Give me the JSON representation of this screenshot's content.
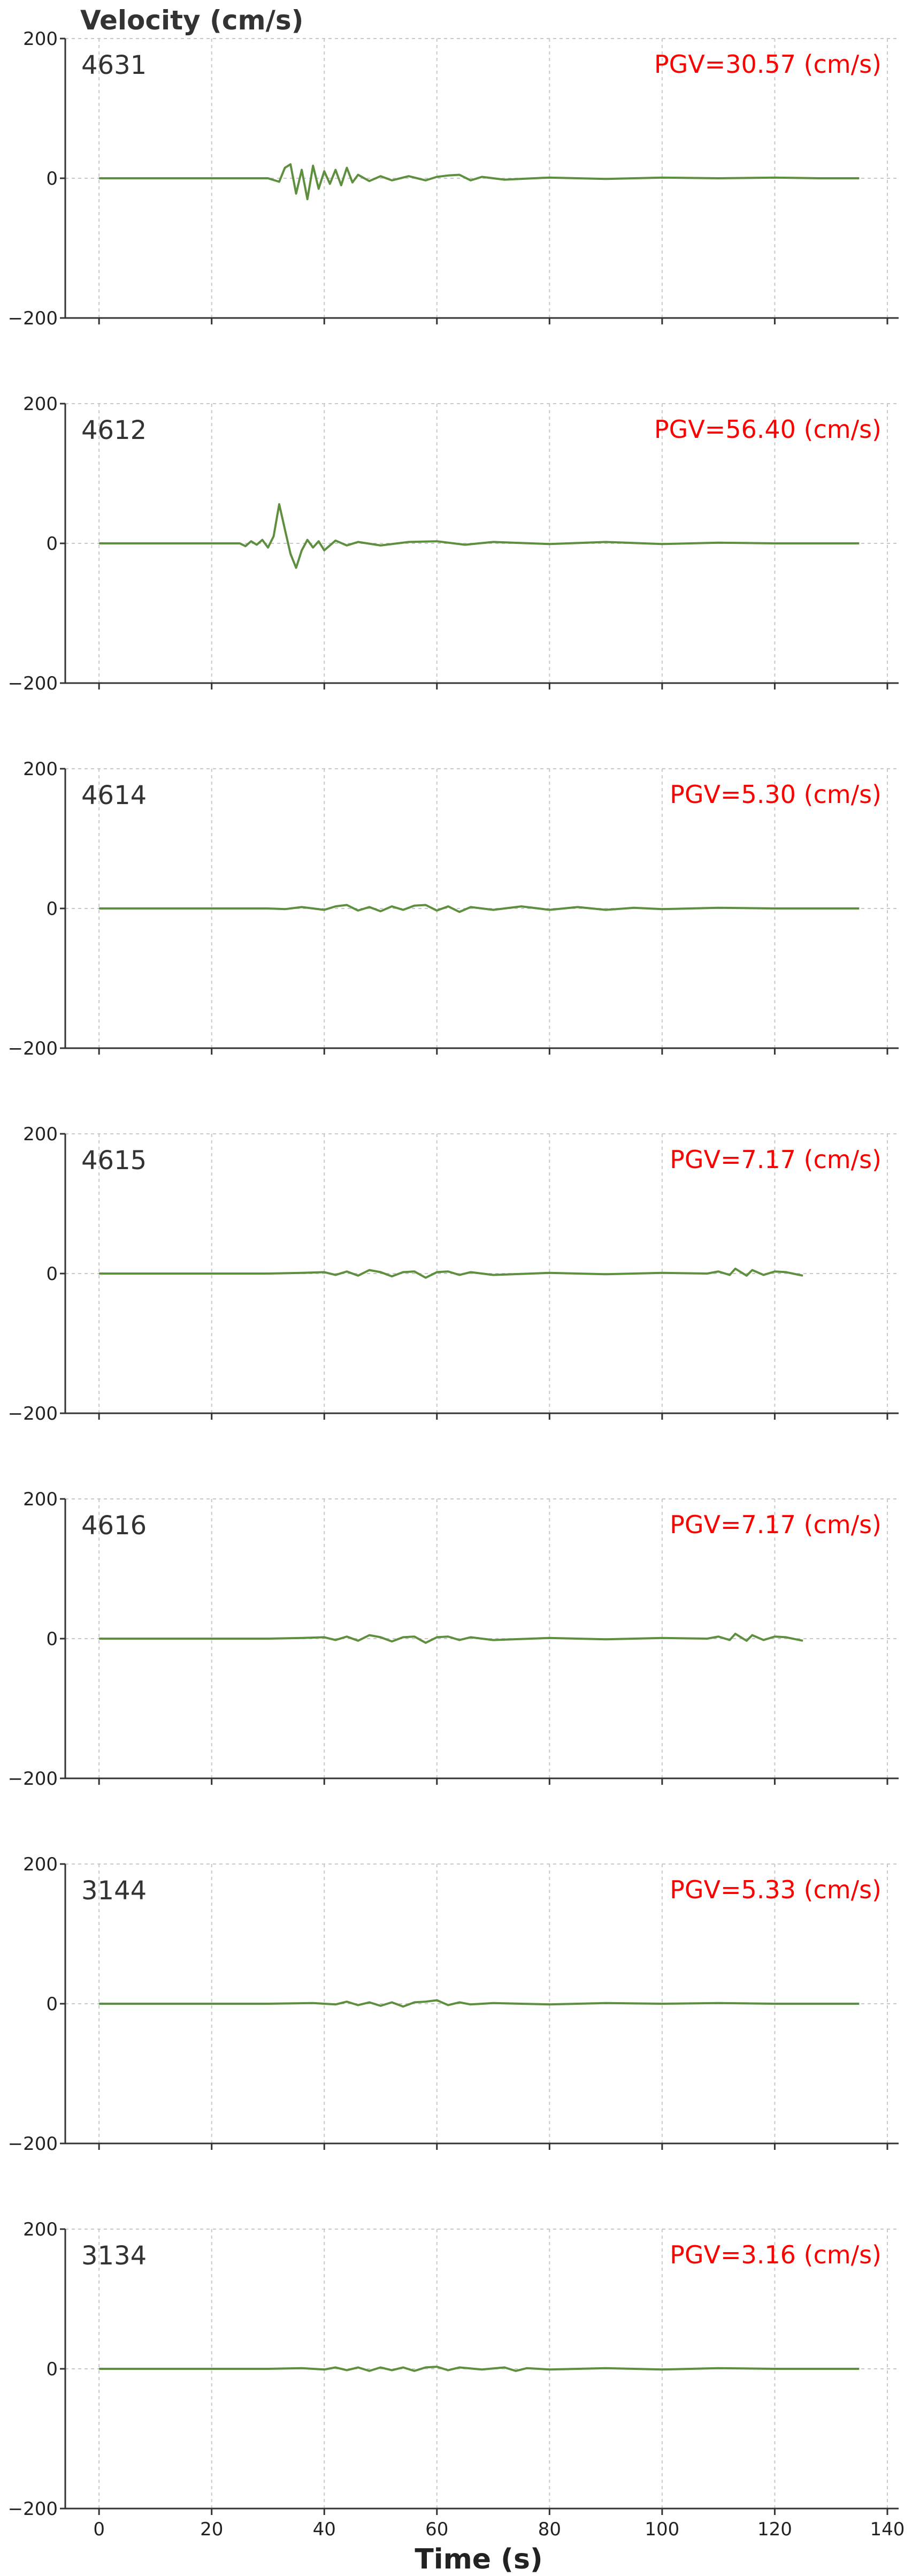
{
  "chart_data": {
    "type": "line",
    "ylabel": "Velocity (cm/s)",
    "xlabel": "Time (s)",
    "xlim": [
      -6,
      142
    ],
    "ylim": [
      -200,
      200
    ],
    "xticks": [
      0,
      20,
      40,
      60,
      80,
      100,
      120,
      140
    ],
    "xtick_labels": [
      "0",
      "20",
      "40",
      "60",
      "80",
      "100",
      "120",
      "140"
    ],
    "yticks": [
      -200,
      0,
      200
    ],
    "ytick_labels": [
      "−200",
      "0",
      "200"
    ],
    "grid": true,
    "line_color": "#5e8f3e",
    "annotation_color": "#ff0000",
    "panels": [
      {
        "station": "4631",
        "pgv_text": "PGV=30.57 (cm/s)",
        "x": [
          0,
          10,
          20,
          30,
          32,
          33,
          34,
          35,
          36,
          37,
          38,
          39,
          40,
          41,
          42,
          43,
          44,
          45,
          46,
          48,
          50,
          52,
          55,
          58,
          60,
          62,
          64,
          66,
          68,
          72,
          80,
          90,
          100,
          110,
          120,
          128,
          135
        ],
        "y": [
          0,
          0,
          0,
          0,
          -5,
          15,
          20,
          -22,
          12,
          -30,
          18,
          -15,
          10,
          -8,
          12,
          -10,
          15,
          -6,
          5,
          -4,
          3,
          -3,
          3,
          -3,
          2,
          4,
          5,
          -3,
          2,
          -2,
          1,
          -1,
          1,
          0,
          1,
          0,
          0
        ]
      },
      {
        "station": "4612",
        "pgv_text": "PGV=56.40 (cm/s)",
        "x": [
          0,
          10,
          20,
          25,
          26,
          27,
          28,
          29,
          30,
          31,
          32,
          33,
          34,
          35,
          36,
          37,
          38,
          39,
          40,
          42,
          44,
          46,
          50,
          55,
          60,
          65,
          70,
          80,
          90,
          100,
          110,
          120,
          135
        ],
        "y": [
          0,
          0,
          0,
          0,
          -4,
          3,
          -2,
          5,
          -6,
          10,
          56,
          20,
          -15,
          -35,
          -10,
          5,
          -6,
          3,
          -10,
          4,
          -3,
          2,
          -3,
          2,
          3,
          -2,
          2,
          -1,
          2,
          -1,
          1,
          0,
          0
        ]
      },
      {
        "station": "4614",
        "pgv_text": "PGV=5.30 (cm/s)",
        "x": [
          0,
          20,
          30,
          33,
          36,
          40,
          42,
          44,
          46,
          48,
          50,
          52,
          54,
          56,
          58,
          60,
          62,
          64,
          66,
          70,
          75,
          80,
          85,
          90,
          95,
          100,
          110,
          120,
          135
        ],
        "y": [
          0,
          0,
          0,
          -1,
          2,
          -2,
          3,
          5,
          -3,
          2,
          -4,
          3,
          -2,
          4,
          5,
          -3,
          3,
          -5,
          2,
          -2,
          3,
          -2,
          2,
          -2,
          1,
          -1,
          1,
          0,
          0
        ]
      },
      {
        "station": "4615",
        "pgv_text": "PGV=7.17 (cm/s)",
        "x": [
          0,
          20,
          30,
          36,
          40,
          42,
          44,
          46,
          48,
          50,
          52,
          54,
          56,
          58,
          60,
          62,
          64,
          66,
          70,
          80,
          90,
          100,
          108,
          110,
          112,
          113,
          114,
          115,
          116,
          118,
          120,
          122,
          125
        ],
        "y": [
          0,
          0,
          0,
          1,
          2,
          -2,
          3,
          -3,
          5,
          2,
          -4,
          2,
          3,
          -6,
          2,
          3,
          -2,
          2,
          -2,
          1,
          -1,
          1,
          0,
          3,
          -2,
          7,
          2,
          -3,
          5,
          -2,
          3,
          2,
          -3
        ]
      },
      {
        "station": "4616",
        "pgv_text": "PGV=7.17 (cm/s)",
        "x": [
          0,
          20,
          30,
          36,
          40,
          42,
          44,
          46,
          48,
          50,
          52,
          54,
          56,
          58,
          60,
          62,
          64,
          66,
          70,
          80,
          90,
          100,
          108,
          110,
          112,
          113,
          114,
          115,
          116,
          118,
          120,
          122,
          125
        ],
        "y": [
          0,
          0,
          0,
          1,
          2,
          -2,
          3,
          -3,
          5,
          2,
          -4,
          2,
          3,
          -6,
          2,
          3,
          -2,
          2,
          -2,
          1,
          -1,
          1,
          0,
          3,
          -2,
          7,
          2,
          -3,
          5,
          -2,
          3,
          2,
          -3
        ]
      },
      {
        "station": "3144",
        "pgv_text": "PGV=5.33 (cm/s)",
        "x": [
          0,
          20,
          30,
          38,
          42,
          44,
          46,
          48,
          50,
          52,
          54,
          56,
          58,
          60,
          62,
          64,
          66,
          70,
          80,
          90,
          100,
          110,
          120,
          135
        ],
        "y": [
          0,
          0,
          0,
          1,
          -1,
          3,
          -2,
          2,
          -3,
          2,
          -4,
          2,
          3,
          5,
          -2,
          2,
          -1,
          1,
          -1,
          1,
          0,
          1,
          0,
          0
        ]
      },
      {
        "station": "3134",
        "pgv_text": "PGV=3.16 (cm/s)",
        "x": [
          0,
          20,
          30,
          36,
          40,
          42,
          44,
          46,
          48,
          50,
          52,
          54,
          56,
          58,
          60,
          62,
          64,
          68,
          72,
          74,
          76,
          80,
          90,
          100,
          110,
          120,
          135
        ],
        "y": [
          0,
          0,
          0,
          1,
          -1,
          2,
          -2,
          2,
          -3,
          2,
          -2,
          2,
          -3,
          2,
          3,
          -2,
          2,
          -1,
          2,
          -3,
          1,
          -1,
          1,
          -1,
          1,
          0,
          0
        ]
      }
    ]
  }
}
